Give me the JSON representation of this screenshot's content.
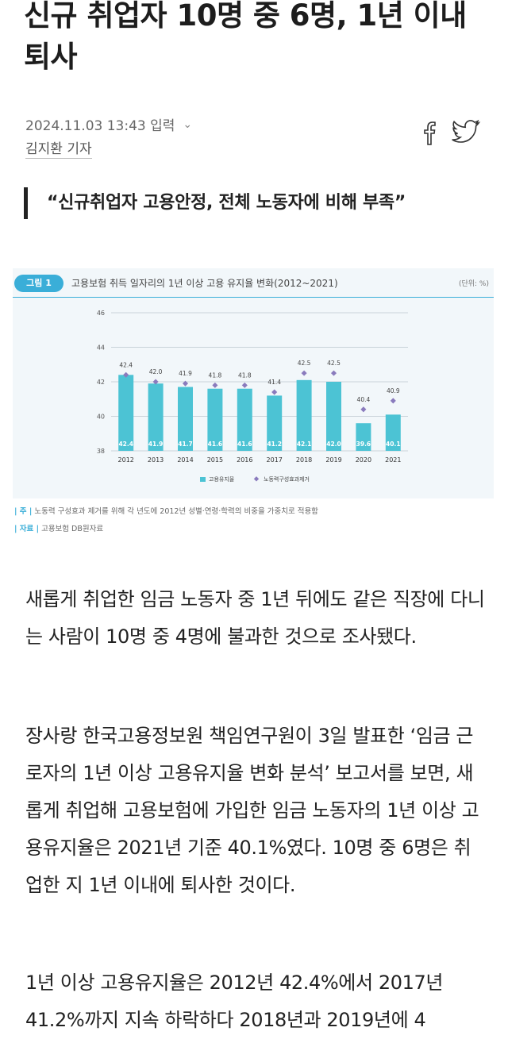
{
  "article": {
    "headline": "신규 취업자 10명 중 6명, 1년 이내 퇴사",
    "date": "2024.11.03 13:43 입력",
    "reporter": "김지환 기자",
    "subheading": "“신규취업자 고용안정, 전체 노동자에 비해 부족”",
    "paragraphs": [
      "새롭게 취업한 임금 노동자 중 1년 뒤에도 같은 직장에 다니는 사람이 10명 중 4명에 불과한 것으로 조사됐다.",
      "장사랑 한국고용정보원 책임연구원이 3일 발표한 ‘임금 근로자의 1년 이상 고용유지율 변화 분석’ 보고서를 보면, 새롭게 취업해 고용보험에 가입한 임금 노동자의 1년 이상 고용유지율은 2021년 기준 40.1%였다. 10명 중 6명은 취업한 지 1년 이내에 퇴사한 것이다.",
      "1년 이상 고용유지율은 2012년 42.4%에서 2017년 41.2%까지 지속 하락하다 2018년과 2019년에 4"
    ]
  },
  "share": {
    "facebook_icon": "facebook-icon",
    "twitter_icon": "twitter-icon"
  },
  "figure": {
    "tag": "그림 1",
    "title": "고용보험 취득 일자리의 1년 이상 고용 유지율 변화(2012~2021)",
    "unit": "(단위: %)",
    "note_label": "주",
    "note": "노동력 구성효과 제거를 위해 각 년도에 2012년 성별·연령·학력의 비중을 가중치로 적용함",
    "source_label": "자료",
    "source": "고용보험 DB원자료"
  },
  "chart_data": {
    "type": "bar",
    "title": "고용보험 취득 일자리의 1년 이상 고용 유지율 변화(2012~2021)",
    "categories": [
      "2012",
      "2013",
      "2014",
      "2015",
      "2016",
      "2017",
      "2018",
      "2019",
      "2020",
      "2021"
    ],
    "series": [
      {
        "name": "고용유지율",
        "type": "bar",
        "color": "#4cc3d4",
        "values": [
          42.4,
          41.9,
          41.7,
          41.6,
          41.6,
          41.2,
          42.1,
          42.0,
          39.6,
          40.1
        ]
      },
      {
        "name": "노동력구성효과제거",
        "type": "scatter",
        "color": "#8a7bbd",
        "values": [
          42.4,
          42.0,
          41.9,
          41.8,
          41.8,
          41.4,
          42.5,
          42.5,
          40.4,
          40.9
        ]
      }
    ],
    "yticks": [
      38,
      40,
      42,
      44,
      46
    ],
    "ylim": [
      38,
      46
    ],
    "xlabel": "",
    "ylabel": "",
    "grid": true,
    "legend": "bottom-center"
  }
}
